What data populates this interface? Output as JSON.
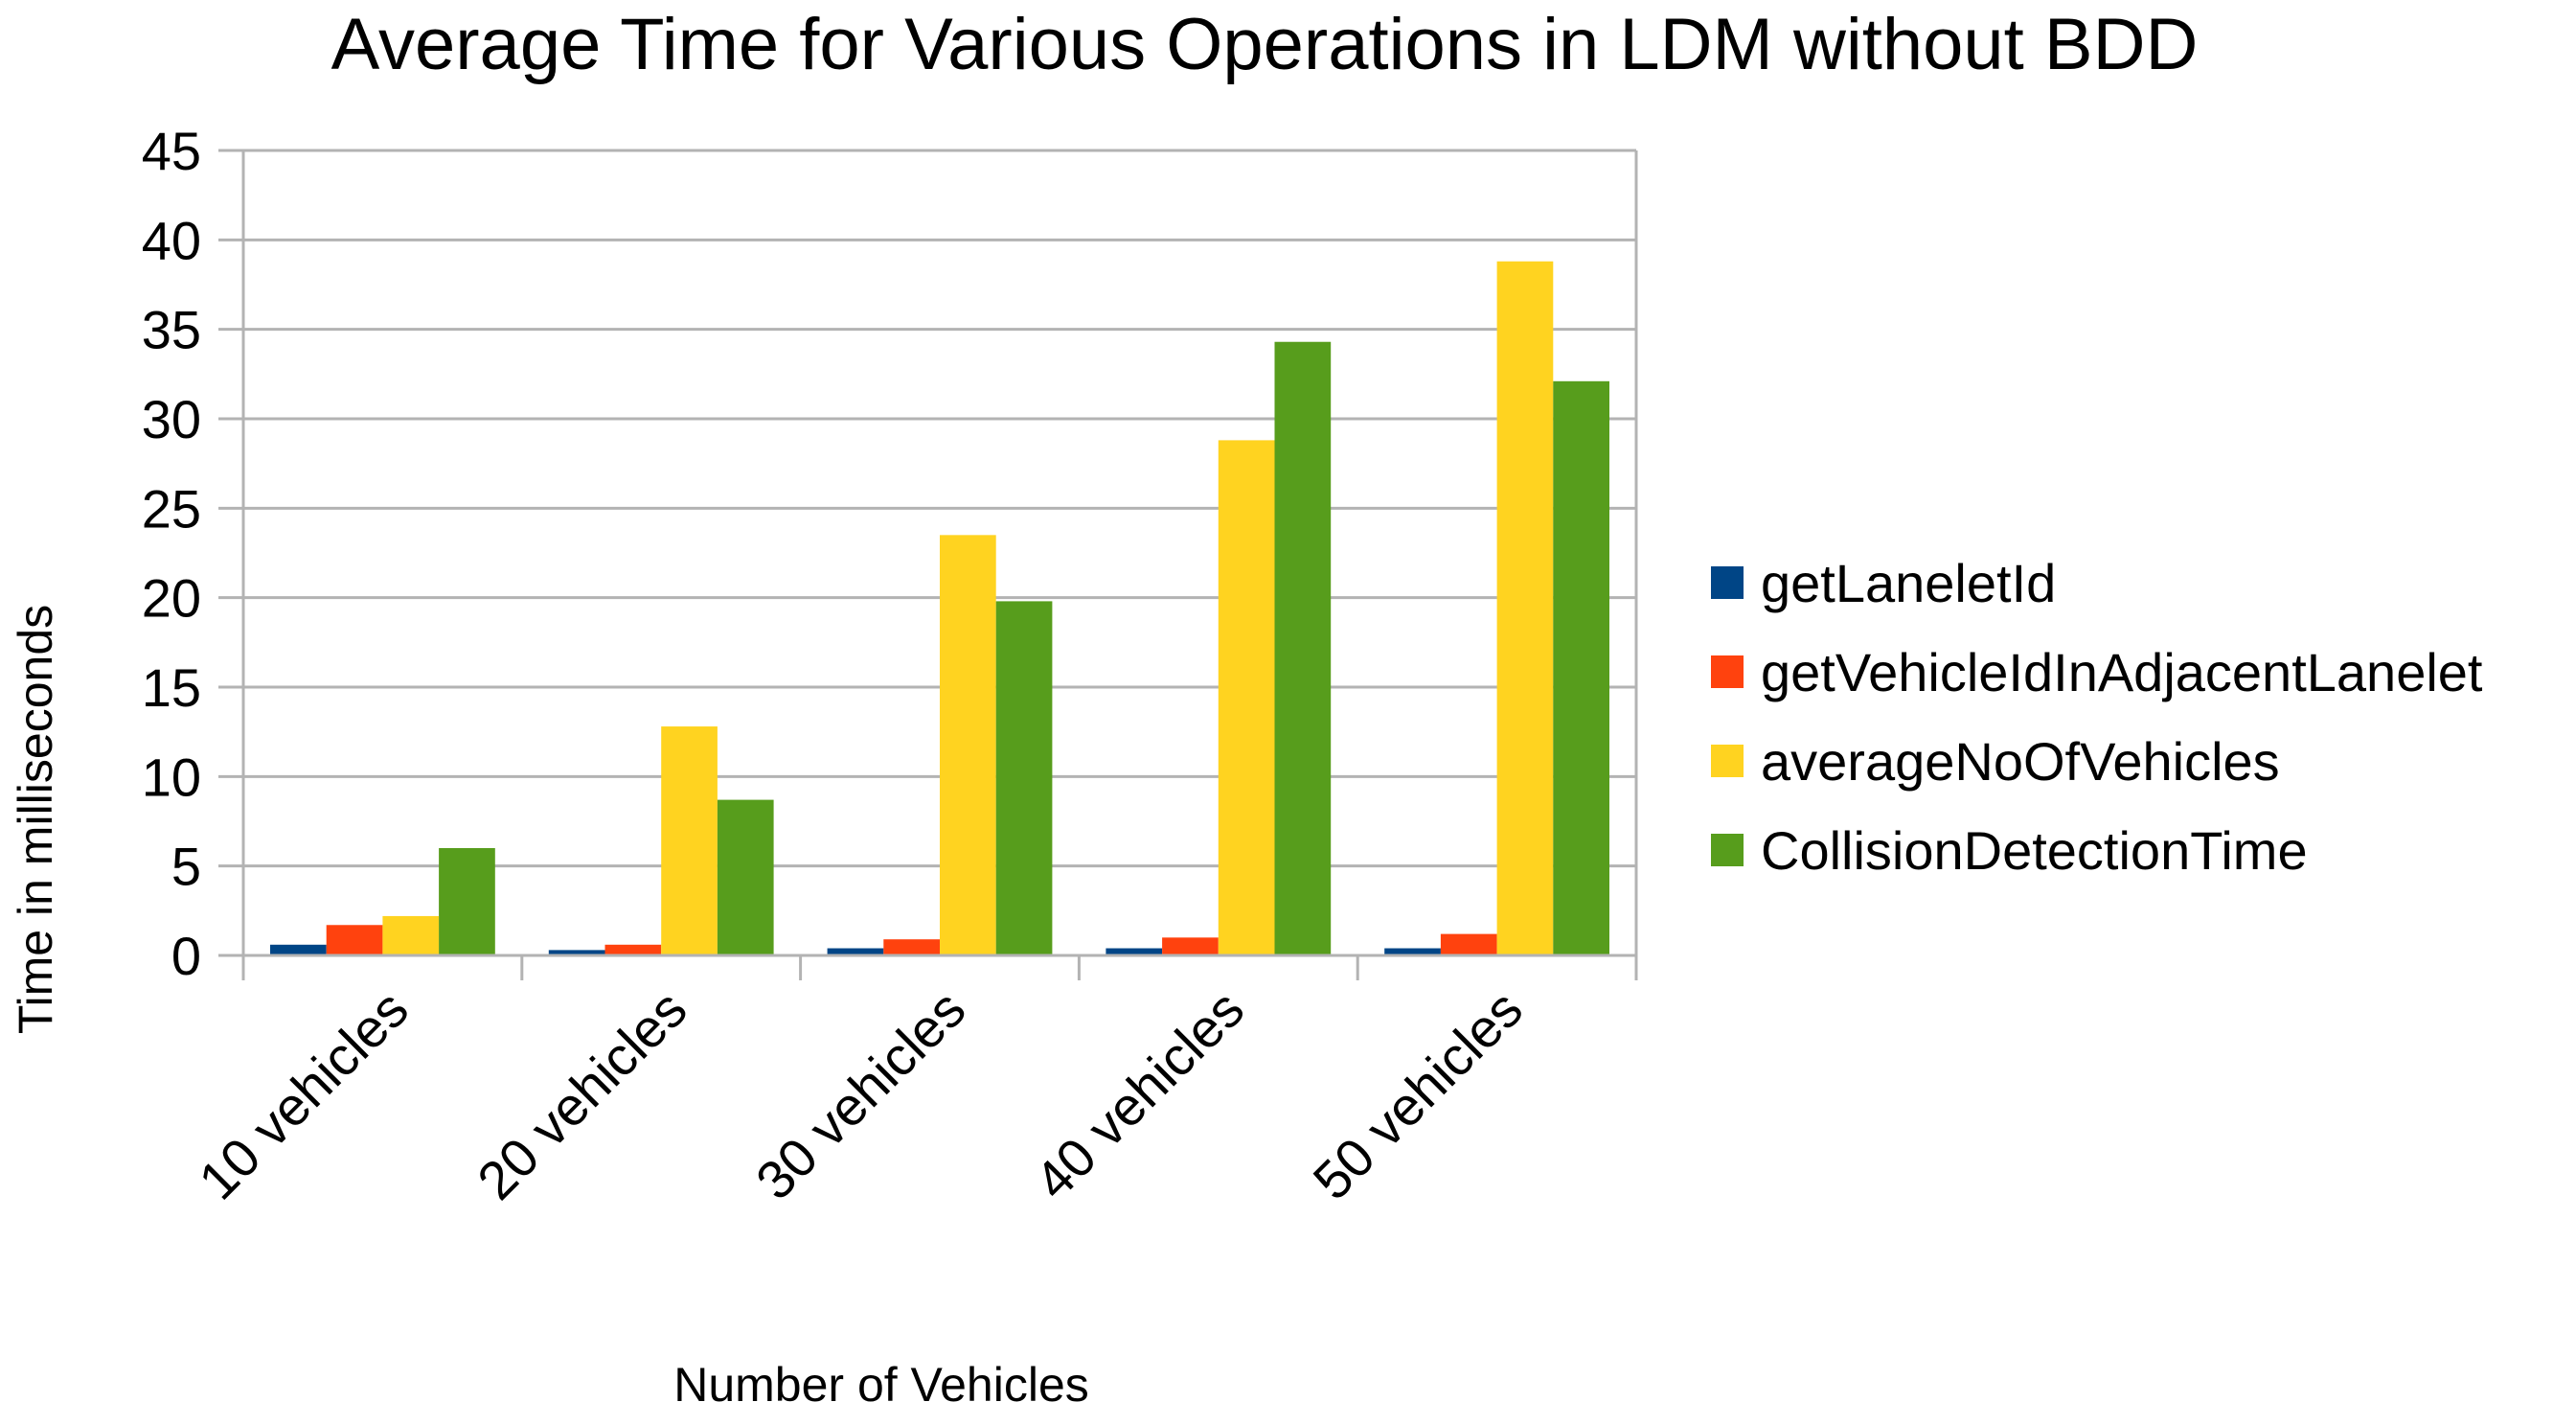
{
  "chart_data": {
    "type": "bar",
    "title": "Average Time for Various Operations in LDM without BDD",
    "xlabel": "Number of Vehicles",
    "ylabel": "Time in milliseconds",
    "ylim": [
      0,
      45
    ],
    "yticks": [
      0,
      5,
      10,
      15,
      20,
      25,
      30,
      35,
      40,
      45
    ],
    "grid": true,
    "legend_position": "right",
    "categories": [
      "10 vehicles",
      "20 vehicles",
      "30 vehicles",
      "40 vehicles",
      "50 vehicles"
    ],
    "series": [
      {
        "name": "getLaneletId",
        "color": "#004586",
        "values": [
          0.6,
          0.3,
          0.4,
          0.4,
          0.4
        ]
      },
      {
        "name": "getVehicleIdInAdjacentLanelet",
        "color": "#ff420e",
        "values": [
          1.7,
          0.6,
          0.9,
          1.0,
          1.2
        ]
      },
      {
        "name": "averageNoOfVehicles",
        "color": "#ffd320",
        "values": [
          2.2,
          12.8,
          23.5,
          28.8,
          38.8
        ]
      },
      {
        "name": "CollisionDetectionTime",
        "color": "#579d1c",
        "values": [
          6.0,
          8.7,
          19.8,
          34.3,
          32.1
        ]
      }
    ]
  }
}
